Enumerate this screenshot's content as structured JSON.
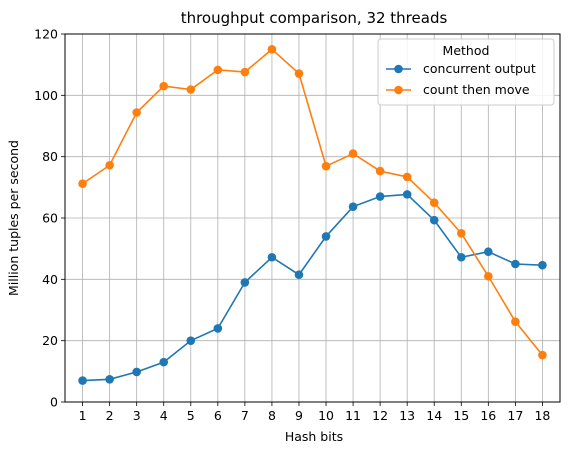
{
  "chart_data": {
    "type": "line",
    "title": "throughput comparison, 32 threads",
    "xlabel": "Hash bits",
    "ylabel": "Million tuples per second",
    "x": [
      1,
      2,
      3,
      4,
      5,
      6,
      7,
      8,
      9,
      10,
      11,
      12,
      13,
      14,
      15,
      16,
      17,
      18
    ],
    "ylim": [
      0,
      120
    ],
    "yticks": [
      0,
      20,
      40,
      60,
      80,
      100,
      120
    ],
    "grid": true,
    "legend": {
      "title": "Method",
      "placement": "top-right"
    },
    "series": [
      {
        "name": "concurrent output",
        "color": "#1f77b4",
        "values": [
          7,
          7.4,
          9.8,
          13,
          20,
          24,
          39,
          47.2,
          41.5,
          54,
          63.7,
          67,
          67.7,
          59.3,
          47.2,
          49,
          45,
          44.6
        ]
      },
      {
        "name": "count then move",
        "color": "#ff7f0e",
        "values": [
          71.2,
          77.2,
          94.4,
          103,
          101.9,
          108.3,
          107.6,
          115,
          107.1,
          76.9,
          81,
          75.3,
          73.4,
          65,
          55,
          41,
          26.2,
          15.3
        ]
      }
    ]
  }
}
